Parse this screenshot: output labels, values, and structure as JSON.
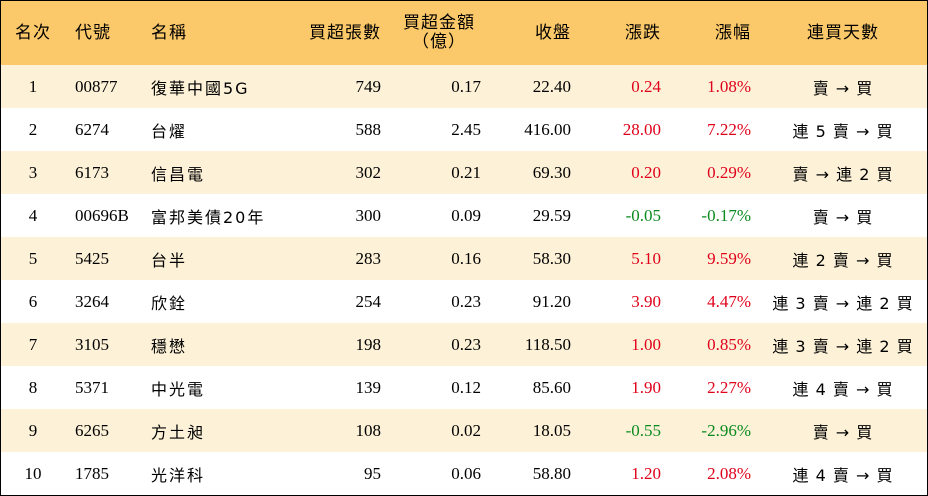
{
  "headers": {
    "rank": "名次",
    "code": "代號",
    "name": "名稱",
    "net_buy_lots": "買超張數",
    "net_buy_amount_line1": "買超金額",
    "net_buy_amount_line2": "（億）",
    "close": "收盤",
    "change": "漲跌",
    "change_pct": "漲幅",
    "consecutive_days": "連買天數"
  },
  "colors": {
    "header_bg": "#fcc96a",
    "odd_row_bg": "#fdf2d8",
    "up": "#e0001a",
    "down": "#0a8a1e"
  },
  "rows": [
    {
      "rank": "1",
      "code": "00877",
      "name": "復華中國5G",
      "lots": "749",
      "amount": "0.17",
      "close": "22.40",
      "change": "0.24",
      "pct": "1.08%",
      "dir": "up",
      "days": "賣 → 買"
    },
    {
      "rank": "2",
      "code": "6274",
      "name": "台燿",
      "lots": "588",
      "amount": "2.45",
      "close": "416.00",
      "change": "28.00",
      "pct": "7.22%",
      "dir": "up",
      "days": "連 5 賣 → 買"
    },
    {
      "rank": "3",
      "code": "6173",
      "name": "信昌電",
      "lots": "302",
      "amount": "0.21",
      "close": "69.30",
      "change": "0.20",
      "pct": "0.29%",
      "dir": "up",
      "days": "賣 → 連 2 買"
    },
    {
      "rank": "4",
      "code": "00696B",
      "name": "富邦美債20年",
      "lots": "300",
      "amount": "0.09",
      "close": "29.59",
      "change": "-0.05",
      "pct": "-0.17%",
      "dir": "down",
      "days": "賣 → 買"
    },
    {
      "rank": "5",
      "code": "5425",
      "name": "台半",
      "lots": "283",
      "amount": "0.16",
      "close": "58.30",
      "change": "5.10",
      "pct": "9.59%",
      "dir": "up",
      "days": "連 2 賣 → 買"
    },
    {
      "rank": "6",
      "code": "3264",
      "name": "欣銓",
      "lots": "254",
      "amount": "0.23",
      "close": "91.20",
      "change": "3.90",
      "pct": "4.47%",
      "dir": "up",
      "days": "連 3 賣 → 連 2 買"
    },
    {
      "rank": "7",
      "code": "3105",
      "name": "穩懋",
      "lots": "198",
      "amount": "0.23",
      "close": "118.50",
      "change": "1.00",
      "pct": "0.85%",
      "dir": "up",
      "days": "連 3 賣 → 連 2 買"
    },
    {
      "rank": "8",
      "code": "5371",
      "name": "中光電",
      "lots": "139",
      "amount": "0.12",
      "close": "85.60",
      "change": "1.90",
      "pct": "2.27%",
      "dir": "up",
      "days": "連 4 賣 → 買"
    },
    {
      "rank": "9",
      "code": "6265",
      "name": "方土昶",
      "lots": "108",
      "amount": "0.02",
      "close": "18.05",
      "change": "-0.55",
      "pct": "-2.96%",
      "dir": "down",
      "days": "賣 → 買"
    },
    {
      "rank": "10",
      "code": "1785",
      "name": "光洋科",
      "lots": "95",
      "amount": "0.06",
      "close": "58.80",
      "change": "1.20",
      "pct": "2.08%",
      "dir": "up",
      "days": "連 4 賣 → 買"
    }
  ]
}
